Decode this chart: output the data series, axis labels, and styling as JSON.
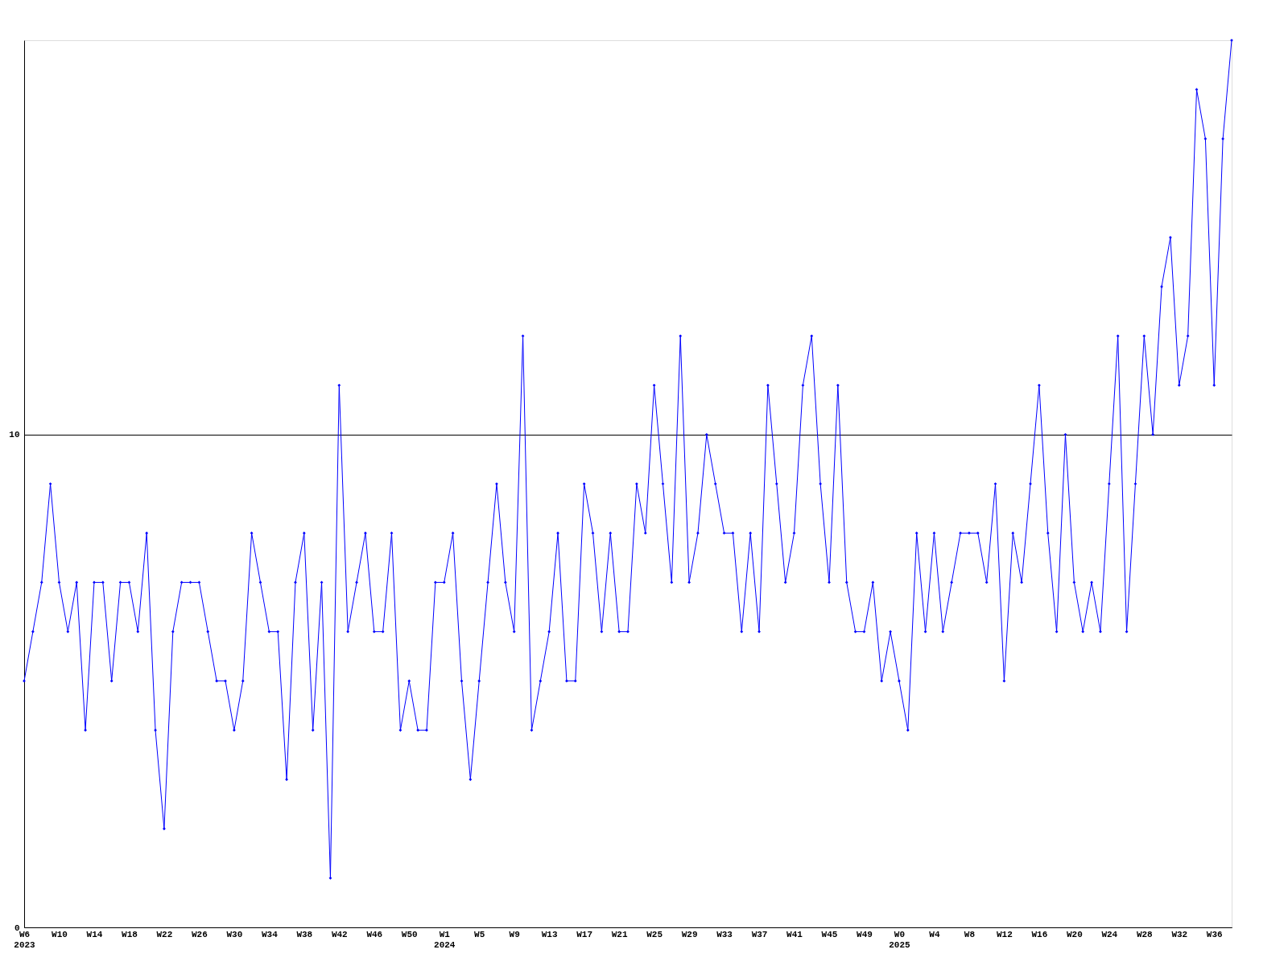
{
  "chart_data": {
    "type": "line",
    "categories": [
      "W6\n2023",
      null,
      null,
      null,
      "W10",
      null,
      null,
      null,
      "W14",
      null,
      null,
      null,
      "W18",
      null,
      null,
      null,
      "W22",
      null,
      null,
      null,
      "W26",
      null,
      null,
      null,
      "W30",
      null,
      null,
      null,
      "W34",
      null,
      null,
      null,
      "W38",
      null,
      null,
      null,
      "W42",
      null,
      null,
      null,
      "W46",
      null,
      null,
      null,
      "W50",
      null,
      null,
      null,
      "W1\n2024",
      null,
      null,
      null,
      "W5",
      null,
      null,
      null,
      "W9",
      null,
      null,
      null,
      "W13",
      null,
      null,
      null,
      "W17",
      null,
      null,
      null,
      "W21",
      null,
      null,
      null,
      "W25",
      null,
      null,
      null,
      "W29",
      null,
      null,
      null,
      "W33",
      null,
      null,
      null,
      "W37",
      null,
      null,
      null,
      "W41",
      null,
      null,
      null,
      "W45",
      null,
      null,
      null,
      "W49",
      null,
      null,
      null,
      "W0\n2025",
      null,
      null,
      null,
      "W4",
      null,
      null,
      null,
      "W8",
      null,
      null,
      null,
      "W12",
      null,
      null,
      null,
      "W16",
      null,
      null,
      null,
      "W20",
      null,
      null,
      null,
      "W24",
      null,
      null,
      null,
      "W28",
      null,
      null,
      null,
      "W32",
      null,
      null,
      null,
      "W36",
      null,
      null
    ],
    "series": [
      {
        "color": "#0000ff",
        "values": [
          5,
          6,
          7,
          9,
          7,
          6,
          7,
          4,
          7,
          7,
          5,
          7,
          7,
          6,
          8,
          4,
          2,
          6,
          7,
          7,
          7,
          6,
          5,
          5,
          4,
          5,
          8,
          7,
          6,
          6,
          3,
          7,
          8,
          4,
          7,
          1,
          11,
          6,
          7,
          8,
          6,
          6,
          8,
          4,
          5,
          4,
          4,
          7,
          7,
          8,
          5,
          3,
          5,
          7,
          9,
          7,
          6,
          12,
          4,
          5,
          6,
          8,
          5,
          5,
          9,
          8,
          6,
          8,
          6,
          6,
          9,
          8,
          11,
          9,
          7,
          12,
          7,
          8,
          10,
          9,
          8,
          8,
          6,
          8,
          6,
          11,
          9,
          7,
          8,
          11,
          12,
          9,
          7,
          11,
          7,
          6,
          6,
          7,
          5,
          6,
          5,
          4,
          8,
          6,
          8,
          6,
          7,
          8,
          8,
          8,
          7,
          9,
          5,
          8,
          7,
          9,
          11,
          8,
          6,
          10,
          7,
          6,
          7,
          6,
          9,
          12,
          6,
          9,
          12,
          10,
          13,
          14,
          11,
          12,
          17,
          16,
          11,
          16,
          18
        ]
      }
    ],
    "ylim": [
      0,
      18
    ],
    "yticks": [
      0,
      10
    ],
    "grid": "y",
    "marker": "diamond",
    "line_style": "solid"
  }
}
